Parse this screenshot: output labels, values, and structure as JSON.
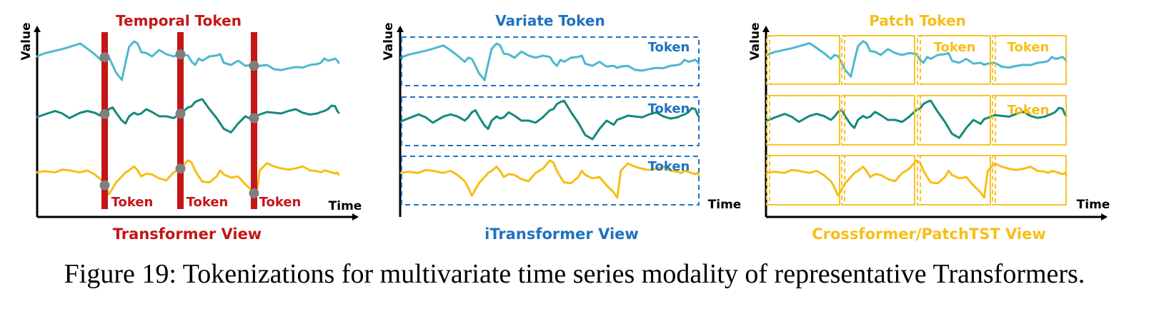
{
  "colors": {
    "blue_series": "#4db8cf",
    "green_series": "#15897c",
    "yellow_series": "#f7be16",
    "transformer_red": "#c41616",
    "itransformer_blue": "#1f72c0",
    "patch_yellow": "#f7be16",
    "marker_gray": "#7f7f7f",
    "axis": "#000000"
  },
  "panels": {
    "transformer": {
      "top_title": "Temporal Token",
      "bottom_title": "Transformer View",
      "token_labels": [
        "Token",
        "Token",
        "Token"
      ],
      "y_label": "Value",
      "x_label": "Time"
    },
    "itransformer": {
      "top_title": "Variate Token",
      "bottom_title": "iTransformer View",
      "token_labels": [
        "Token",
        "Token",
        "Token"
      ],
      "y_label": "Value",
      "x_label": "Time"
    },
    "crossformer": {
      "top_title": "Patch Token",
      "bottom_title": "Crossformer/PatchTST View",
      "token_labels": [
        "Token",
        "Token",
        "Token"
      ],
      "y_label": "Value",
      "x_label": "Time"
    }
  },
  "series_shape": {
    "x": [
      0,
      10,
      25,
      35,
      45,
      60,
      70,
      80,
      90,
      95,
      100,
      105,
      110,
      118,
      123,
      128,
      135,
      140,
      145,
      152,
      160,
      170,
      180,
      190,
      200,
      210,
      215,
      220,
      225,
      230,
      240,
      250,
      255,
      260,
      270,
      280,
      290,
      300,
      305,
      310,
      320,
      330,
      340,
      350,
      360,
      370,
      380,
      390,
      395,
      400,
      405,
      410,
      415,
      418,
      420
    ],
    "top": [
      0.4,
      0.33,
      0.27,
      0.23,
      0.18,
      0.1,
      0.22,
      0.35,
      0.5,
      0.4,
      0.43,
      0.6,
      0.78,
      0.95,
      0.55,
      0.18,
      0.05,
      0.1,
      0.3,
      0.32,
      0.4,
      0.25,
      0.35,
      0.4,
      0.35,
      0.38,
      0.52,
      0.6,
      0.45,
      0.5,
      0.4,
      0.38,
      0.35,
      0.55,
      0.6,
      0.5,
      0.62,
      0.6,
      0.65,
      0.62,
      0.6,
      0.7,
      0.72,
      0.68,
      0.65,
      0.66,
      0.6,
      0.58,
      0.55,
      0.45,
      0.5,
      0.48,
      0.45,
      0.5,
      0.55
    ],
    "middle": [
      0.52,
      0.45,
      0.35,
      0.42,
      0.55,
      0.4,
      0.35,
      0.4,
      0.5,
      0.42,
      0.3,
      0.25,
      0.4,
      0.62,
      0.7,
      0.5,
      0.4,
      0.45,
      0.42,
      0.3,
      0.38,
      0.5,
      0.5,
      0.55,
      0.42,
      0.25,
      0.22,
      0.1,
      0.05,
      0.02,
      0.3,
      0.55,
      0.7,
      0.85,
      0.95,
      0.7,
      0.5,
      0.6,
      0.48,
      0.45,
      0.38,
      0.4,
      0.42,
      0.35,
      0.3,
      0.4,
      0.45,
      0.42,
      0.38,
      0.35,
      0.3,
      0.2,
      0.22,
      0.35,
      0.4
    ],
    "bottom": [
      0.35,
      0.32,
      0.35,
      0.28,
      0.3,
      0.35,
      0.3,
      0.4,
      0.55,
      0.7,
      0.9,
      0.75,
      0.6,
      0.45,
      0.35,
      0.3,
      0.2,
      0.3,
      0.45,
      0.38,
      0.4,
      0.5,
      0.55,
      0.35,
      0.25,
      0.05,
      0.1,
      0.3,
      0.45,
      0.58,
      0.6,
      0.45,
      0.3,
      0.4,
      0.48,
      0.45,
      0.65,
      0.82,
      0.95,
      0.3,
      0.12,
      0.2,
      0.25,
      0.28,
      0.25,
      0.2,
      0.3,
      0.32,
      0.35,
      0.3,
      0.32,
      0.35,
      0.38,
      0.35,
      0.4
    ]
  },
  "caption": "Figure 19: Tokenizations for multivariate time series modality of representative Transformers."
}
